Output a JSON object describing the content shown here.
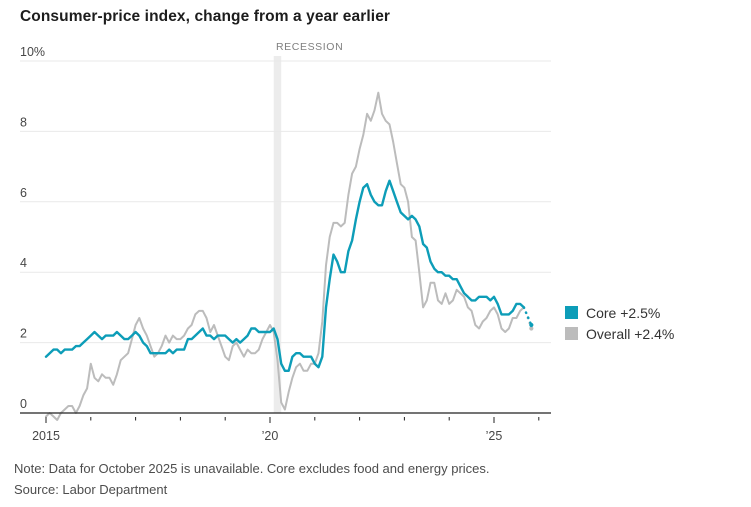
{
  "header": {
    "title": "Consumer-price index, change from a year earlier"
  },
  "footer": {
    "note": "Note: Data for October 2025 is unavailable. Core excludes food and energy prices.",
    "source": "Source: Labor Department"
  },
  "colors": {
    "core": "#0d9db8",
    "overall": "#bcbcbc",
    "gridline": "#e9e9e9",
    "axis": "#222222",
    "recession_band": "#ececec",
    "axis_text": "#474747"
  },
  "chart_data": {
    "type": "line",
    "title": "Consumer-price index, change from a year earlier",
    "x_start": "2015-01",
    "x_end": "2025-11",
    "frequency": "monthly",
    "ylim": [
      0,
      10
    ],
    "grid": "horizontal",
    "legend_position": "right",
    "y_axis": {
      "ticks": [
        {
          "v": 0,
          "label": "0"
        },
        {
          "v": 2,
          "label": "2"
        },
        {
          "v": 4,
          "label": "4"
        },
        {
          "v": 6,
          "label": "6"
        },
        {
          "v": 8,
          "label": "8"
        },
        {
          "v": 10,
          "label": "10%"
        }
      ]
    },
    "x_axis": {
      "years": [
        {
          "year": 2015,
          "label": "2015"
        },
        {
          "year": 2016
        },
        {
          "year": 2017
        },
        {
          "year": 2018
        },
        {
          "year": 2019
        },
        {
          "year": 2020,
          "label": "’20"
        },
        {
          "year": 2021
        },
        {
          "year": 2022
        },
        {
          "year": 2023
        },
        {
          "year": 2024
        },
        {
          "year": 2025,
          "label": "’25"
        },
        {
          "year": 2026
        }
      ]
    },
    "annotations": [
      {
        "text": "RECESSION",
        "type": "band-label"
      }
    ],
    "recession_band": {
      "start_month_index": 61,
      "end_month_index": 63
    },
    "series": [
      {
        "name": "Core",
        "legend_label": "Core +2.5%",
        "latest_value": 2.5,
        "color": "#0d9db8",
        "width": 2.4,
        "values": [
          1.6,
          1.7,
          1.8,
          1.8,
          1.7,
          1.8,
          1.8,
          1.8,
          1.9,
          1.9,
          2.0,
          2.1,
          2.2,
          2.3,
          2.2,
          2.1,
          2.2,
          2.2,
          2.2,
          2.3,
          2.2,
          2.1,
          2.1,
          2.2,
          2.3,
          2.2,
          2.0,
          1.9,
          1.7,
          1.7,
          1.7,
          1.7,
          1.7,
          1.8,
          1.7,
          1.8,
          1.8,
          1.8,
          2.1,
          2.1,
          2.2,
          2.3,
          2.4,
          2.2,
          2.2,
          2.1,
          2.2,
          2.2,
          2.2,
          2.1,
          2.0,
          2.1,
          2.0,
          2.1,
          2.2,
          2.4,
          2.4,
          2.3,
          2.3,
          2.3,
          2.3,
          2.4,
          2.1,
          1.4,
          1.2,
          1.2,
          1.6,
          1.7,
          1.7,
          1.6,
          1.6,
          1.6,
          1.4,
          1.3,
          1.6,
          3.0,
          3.8,
          4.5,
          4.3,
          4.0,
          4.0,
          4.6,
          4.9,
          5.5,
          6.0,
          6.4,
          6.5,
          6.2,
          6.0,
          5.9,
          5.9,
          6.3,
          6.6,
          6.3,
          6.0,
          5.7,
          5.6,
          5.5,
          5.6,
          5.5,
          5.3,
          4.8,
          4.7,
          4.3,
          4.1,
          4.0,
          4.0,
          3.9,
          3.9,
          3.8,
          3.8,
          3.6,
          3.4,
          3.3,
          3.2,
          3.2,
          3.3,
          3.3,
          3.3,
          3.2,
          3.3,
          3.1,
          2.8,
          2.8,
          2.8,
          2.9,
          3.1,
          3.1,
          3.0,
          null,
          2.5
        ]
      },
      {
        "name": "Overall",
        "legend_label": "Overall +2.4%",
        "latest_value": 2.4,
        "color": "#bcbcbc",
        "width": 2.0,
        "values": [
          -0.1,
          0.0,
          -0.1,
          -0.2,
          0.0,
          0.1,
          0.2,
          0.2,
          0.0,
          0.2,
          0.5,
          0.7,
          1.4,
          1.0,
          0.9,
          1.1,
          1.0,
          1.0,
          0.8,
          1.1,
          1.5,
          1.6,
          1.7,
          2.1,
          2.5,
          2.7,
          2.4,
          2.2,
          1.9,
          1.6,
          1.7,
          1.9,
          2.2,
          2.0,
          2.2,
          2.1,
          2.1,
          2.2,
          2.4,
          2.5,
          2.8,
          2.9,
          2.9,
          2.7,
          2.3,
          2.5,
          2.2,
          1.9,
          1.6,
          1.5,
          1.9,
          2.0,
          1.8,
          1.6,
          1.8,
          1.7,
          1.7,
          1.8,
          2.1,
          2.3,
          2.5,
          2.3,
          1.5,
          0.3,
          0.1,
          0.6,
          1.0,
          1.3,
          1.4,
          1.2,
          1.2,
          1.4,
          1.4,
          1.7,
          2.6,
          4.2,
          5.0,
          5.4,
          5.4,
          5.3,
          5.4,
          6.2,
          6.8,
          7.0,
          7.5,
          7.9,
          8.5,
          8.3,
          8.6,
          9.1,
          8.5,
          8.3,
          8.2,
          7.7,
          7.1,
          6.5,
          6.4,
          6.0,
          5.0,
          4.9,
          4.0,
          3.0,
          3.2,
          3.7,
          3.7,
          3.2,
          3.1,
          3.4,
          3.1,
          3.2,
          3.5,
          3.4,
          3.3,
          3.0,
          2.9,
          2.5,
          2.4,
          2.6,
          2.7,
          2.9,
          3.0,
          2.8,
          2.4,
          2.3,
          2.4,
          2.7,
          2.7,
          2.9,
          3.0,
          null,
          2.4
        ]
      }
    ]
  }
}
